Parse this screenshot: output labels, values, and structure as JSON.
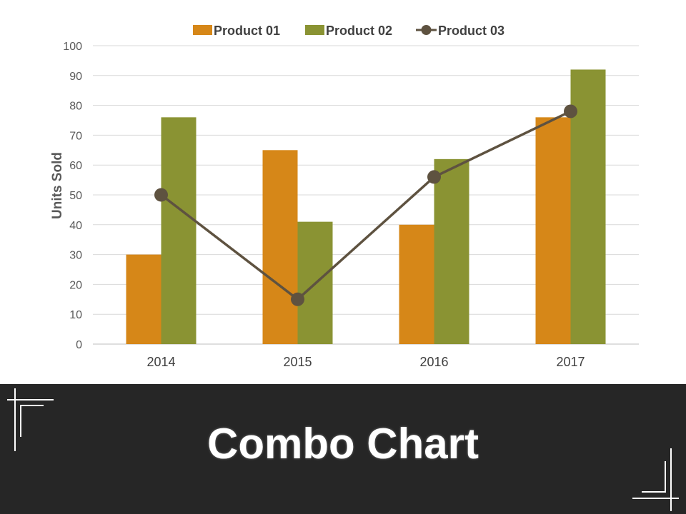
{
  "chart_data": {
    "type": "bar",
    "combo": true,
    "categories": [
      "2014",
      "2015",
      "2016",
      "2017"
    ],
    "series": [
      {
        "name": "Product 01",
        "type": "bar",
        "color": "#d68718",
        "values": [
          30,
          65,
          40,
          76
        ]
      },
      {
        "name": "Product 02",
        "type": "bar",
        "color": "#8a9333",
        "values": [
          76,
          41,
          62,
          92
        ]
      },
      {
        "name": "Product 03",
        "type": "line",
        "color": "#5e5240",
        "marker": "circle",
        "values": [
          50,
          15,
          56,
          78
        ]
      }
    ],
    "ylabel": "Units Sold",
    "xlabel": "",
    "ylim": [
      0,
      100
    ],
    "yticks": [
      "0",
      "10",
      "20",
      "30",
      "40",
      "50",
      "60",
      "70",
      "80",
      "90",
      "100"
    ],
    "grid": true,
    "legend_position": "top"
  },
  "footer": {
    "title": "Combo Chart",
    "background": "#262626"
  }
}
